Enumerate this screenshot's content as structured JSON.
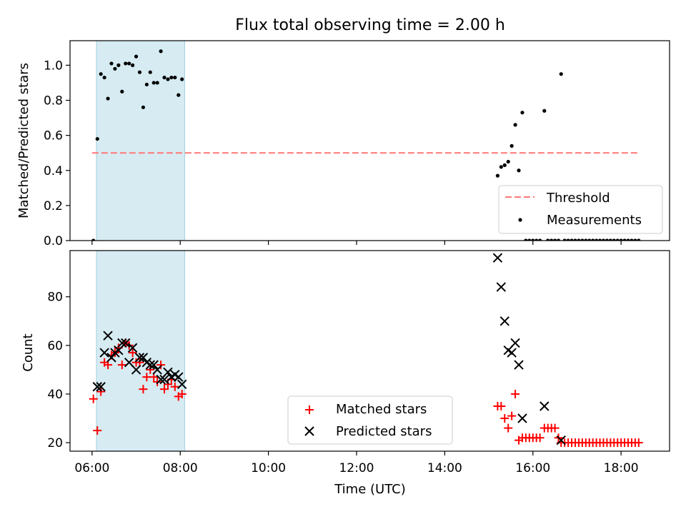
{
  "chart_data": {
    "type": "scatter",
    "title": "Flux total observing time = 2.00 h",
    "xlabel": "Time (UTC)",
    "x_unit": "hours UTC",
    "xlim": [
      5.5,
      19.1
    ],
    "x_ticks": [
      {
        "value": 6,
        "label": "06:00"
      },
      {
        "value": 8,
        "label": "08:00"
      },
      {
        "value": 10,
        "label": "10:00"
      },
      {
        "value": 12,
        "label": "12:00"
      },
      {
        "value": 14,
        "label": "14:00"
      },
      {
        "value": 16,
        "label": "16:00"
      },
      {
        "value": 18,
        "label": "18:00"
      }
    ],
    "shaded_interval": {
      "start": 6.1,
      "end": 8.1,
      "color": "#add8e6"
    },
    "panels": [
      {
        "id": "ratio",
        "ylabel": "Matched/Predicted stars",
        "ylim": [
          0,
          1.14
        ],
        "y_ticks": [
          "0.0",
          "0.2",
          "0.4",
          "0.6",
          "0.8",
          "1.0"
        ],
        "threshold": {
          "name": "Threshold",
          "value": 0.5,
          "x_range": [
            6.0,
            18.42
          ],
          "color": "#ff7f7f"
        },
        "legend": {
          "position": "lower right",
          "entries": [
            "Threshold",
            "Measurements"
          ]
        },
        "series": [
          {
            "name": "Measurements",
            "marker": "dot",
            "color": "#000000",
            "points": [
              [
                6.03,
                0.0
              ],
              [
                6.12,
                0.58
              ],
              [
                6.2,
                0.95
              ],
              [
                6.28,
                0.93
              ],
              [
                6.36,
                0.81
              ],
              [
                6.44,
                1.01
              ],
              [
                6.52,
                0.98
              ],
              [
                6.6,
                1.0
              ],
              [
                6.68,
                0.85
              ],
              [
                6.76,
                1.01
              ],
              [
                6.84,
                1.01
              ],
              [
                6.92,
                1.0
              ],
              [
                7.0,
                1.05
              ],
              [
                7.08,
                0.96
              ],
              [
                7.16,
                0.76
              ],
              [
                7.24,
                0.89
              ],
              [
                7.32,
                0.96
              ],
              [
                7.4,
                0.9
              ],
              [
                7.48,
                0.9
              ],
              [
                7.56,
                1.08
              ],
              [
                7.64,
                0.93
              ],
              [
                7.72,
                0.92
              ],
              [
                7.8,
                0.93
              ],
              [
                7.88,
                0.93
              ],
              [
                7.96,
                0.83
              ],
              [
                8.04,
                0.92
              ],
              [
                15.2,
                0.37
              ],
              [
                15.28,
                0.42
              ],
              [
                15.36,
                0.43
              ],
              [
                15.44,
                0.45
              ],
              [
                15.52,
                0.54
              ],
              [
                15.6,
                0.66
              ],
              [
                15.68,
                0.4
              ],
              [
                15.76,
                0.73
              ],
              [
                16.26,
                0.74
              ],
              [
                16.64,
                0.95
              ],
              [
                15.84,
                0.0
              ],
              [
                15.92,
                0.0
              ],
              [
                16.0,
                0.0
              ],
              [
                16.08,
                0.0
              ],
              [
                16.16,
                0.0
              ],
              [
                16.34,
                0.0
              ],
              [
                16.42,
                0.0
              ],
              [
                16.5,
                0.0
              ],
              [
                16.58,
                0.0
              ],
              [
                16.72,
                0.0
              ],
              [
                16.8,
                0.0
              ],
              [
                16.88,
                0.0
              ],
              [
                16.96,
                0.0
              ],
              [
                17.04,
                0.0
              ],
              [
                17.12,
                0.0
              ],
              [
                17.2,
                0.0
              ],
              [
                17.28,
                0.0
              ],
              [
                17.36,
                0.0
              ],
              [
                17.44,
                0.0
              ],
              [
                17.52,
                0.0
              ],
              [
                17.6,
                0.0
              ],
              [
                17.68,
                0.0
              ],
              [
                17.76,
                0.0
              ],
              [
                17.84,
                0.0
              ],
              [
                17.92,
                0.0
              ],
              [
                18.0,
                0.0
              ],
              [
                18.08,
                0.0
              ],
              [
                18.16,
                0.0
              ],
              [
                18.24,
                0.0
              ],
              [
                18.32,
                0.0
              ],
              [
                18.4,
                0.0
              ]
            ]
          }
        ]
      },
      {
        "id": "count",
        "ylabel": "Count",
        "ylim": [
          16.5,
          99
        ],
        "y_ticks": [
          "20",
          "40",
          "60",
          "80"
        ],
        "legend": {
          "position": "lower center",
          "entries": [
            "Matched stars",
            "Predicted stars"
          ]
        },
        "series": [
          {
            "name": "Matched stars",
            "marker": "plus",
            "color": "#ff0000",
            "points": [
              [
                6.03,
                38
              ],
              [
                6.12,
                25
              ],
              [
                6.2,
                41
              ],
              [
                6.28,
                53
              ],
              [
                6.36,
                52
              ],
              [
                6.44,
                56
              ],
              [
                6.52,
                57
              ],
              [
                6.6,
                59
              ],
              [
                6.68,
                52
              ],
              [
                6.76,
                61
              ],
              [
                6.84,
                60
              ],
              [
                6.92,
                57
              ],
              [
                7.0,
                53
              ],
              [
                7.08,
                53
              ],
              [
                7.16,
                42
              ],
              [
                7.24,
                47
              ],
              [
                7.32,
                50
              ],
              [
                7.4,
                47
              ],
              [
                7.48,
                45
              ],
              [
                7.56,
                52
              ],
              [
                7.64,
                42
              ],
              [
                7.72,
                44
              ],
              [
                7.8,
                46
              ],
              [
                7.88,
                43
              ],
              [
                7.96,
                39
              ],
              [
                8.04,
                40
              ],
              [
                15.2,
                35
              ],
              [
                15.28,
                35
              ],
              [
                15.36,
                30
              ],
              [
                15.44,
                26
              ],
              [
                15.52,
                31
              ],
              [
                15.6,
                40
              ],
              [
                15.68,
                21
              ],
              [
                15.76,
                22
              ],
              [
                15.84,
                22
              ],
              [
                15.92,
                22
              ],
              [
                16.0,
                22
              ],
              [
                16.08,
                22
              ],
              [
                16.16,
                22
              ],
              [
                16.26,
                26
              ],
              [
                16.34,
                26
              ],
              [
                16.42,
                26
              ],
              [
                16.5,
                26
              ],
              [
                16.58,
                22
              ],
              [
                16.64,
                20
              ],
              [
                16.72,
                20
              ],
              [
                16.8,
                20
              ],
              [
                16.88,
                20
              ],
              [
                16.96,
                20
              ],
              [
                17.04,
                20
              ],
              [
                17.12,
                20
              ],
              [
                17.2,
                20
              ],
              [
                17.28,
                20
              ],
              [
                17.36,
                20
              ],
              [
                17.44,
                20
              ],
              [
                17.52,
                20
              ],
              [
                17.6,
                20
              ],
              [
                17.68,
                20
              ],
              [
                17.76,
                20
              ],
              [
                17.84,
                20
              ],
              [
                17.92,
                20
              ],
              [
                18.0,
                20
              ],
              [
                18.08,
                20
              ],
              [
                18.16,
                20
              ],
              [
                18.24,
                20
              ],
              [
                18.32,
                20
              ],
              [
                18.4,
                20
              ]
            ]
          },
          {
            "name": "Predicted stars",
            "marker": "x",
            "color": "#000000",
            "points": [
              [
                6.12,
                43
              ],
              [
                6.2,
                43
              ],
              [
                6.28,
                57
              ],
              [
                6.36,
                64
              ],
              [
                6.44,
                55
              ],
              [
                6.52,
                57
              ],
              [
                6.6,
                58
              ],
              [
                6.68,
                61
              ],
              [
                6.76,
                61
              ],
              [
                6.84,
                53
              ],
              [
                6.92,
                59
              ],
              [
                7.0,
                50
              ],
              [
                7.08,
                55
              ],
              [
                7.16,
                55
              ],
              [
                7.24,
                53
              ],
              [
                7.32,
                52
              ],
              [
                7.4,
                52
              ],
              [
                7.48,
                50
              ],
              [
                7.56,
                46
              ],
              [
                7.64,
                46
              ],
              [
                7.72,
                49
              ],
              [
                7.8,
                47
              ],
              [
                7.88,
                48
              ],
              [
                7.96,
                47
              ],
              [
                8.04,
                44
              ],
              [
                15.2,
                96
              ],
              [
                15.28,
                84
              ],
              [
                15.36,
                70
              ],
              [
                15.44,
                58
              ],
              [
                15.52,
                57
              ],
              [
                15.6,
                61
              ],
              [
                15.68,
                52
              ],
              [
                15.76,
                30
              ],
              [
                16.26,
                35
              ],
              [
                16.64,
                21
              ]
            ]
          }
        ]
      }
    ]
  }
}
